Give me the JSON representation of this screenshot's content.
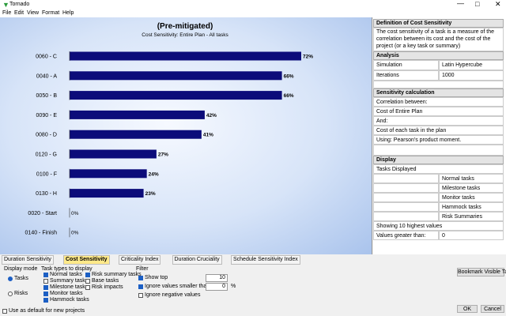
{
  "window": {
    "title": "Tornado"
  },
  "menu": [
    "File",
    "Edit",
    "View",
    "Format",
    "Help"
  ],
  "chart": {
    "type": "bar",
    "orientation": "horizontal",
    "title": "(Pre-mitigated)",
    "subtitle": "Cost Sensitivity: Entire Plan - All tasks",
    "categories": [
      "0060 - C",
      "0040 - A",
      "0050 - B",
      "0090 - E",
      "0080 - D",
      "0120 - G",
      "0100 - F",
      "0130 - H",
      "0020 - Start",
      "0140 - Finish"
    ],
    "values": [
      72,
      66,
      66,
      42,
      41,
      27,
      24,
      23,
      0,
      0
    ],
    "value_labels": [
      "72%",
      "66%",
      "66%",
      "42%",
      "41%",
      "27%",
      "24%",
      "23%",
      "0%",
      "0%"
    ],
    "color": "#0c0c7a"
  },
  "panel": {
    "definition": {
      "header": "Definition of Cost Sensitivity",
      "text": "The cost sensitivity of a task is a measure of the correlation between its cost and the cost of the project (or a key task or summary)"
    },
    "analysis": {
      "header": "Analysis",
      "rows": [
        [
          "Simulation",
          "Latin Hypercube"
        ],
        [
          "Iterations",
          "1000"
        ]
      ]
    },
    "calculation": {
      "header": "Sensitivity calculation",
      "rows": [
        "Correlation between:",
        "Cost of Entire Plan",
        "And:",
        "Cost of each task in the plan",
        "Using: Pearson's product moment."
      ]
    },
    "display": {
      "header": "Display",
      "tasks_displayed": "Tasks Displayed",
      "task_types": [
        "Normal tasks",
        "Milestone tasks",
        "Monitor tasks",
        "Hammock tasks",
        "Risk Summaries"
      ],
      "showing": "Showing 10 highest values",
      "values_greater": [
        "Values greater than:",
        "0"
      ]
    }
  },
  "tabs": [
    "Duration Sensitivity",
    "Cost Sensitivity",
    "Criticality Index",
    "Duration Cruciality",
    "Schedule Sensitivity Index"
  ],
  "options": {
    "display_mode": {
      "label": "Display mode",
      "options": [
        {
          "label": "Tasks",
          "checked": true
        },
        {
          "label": "Risks",
          "checked": false
        }
      ]
    },
    "task_types": {
      "label": "Task types to display",
      "items": [
        {
          "label": "Normal tasks",
          "checked": true
        },
        {
          "label": "Summary tasks",
          "checked": false
        },
        {
          "label": "Milestone tasks",
          "checked": true
        },
        {
          "label": "Monitor tasks",
          "checked": true
        },
        {
          "label": "Hammock tasks",
          "checked": true
        },
        {
          "label": "Risk summary tasks",
          "checked": true
        },
        {
          "label": "Base tasks",
          "checked": false
        },
        {
          "label": "Risk impacts",
          "checked": false
        }
      ]
    },
    "filter": {
      "label": "Filter",
      "show_top": {
        "label": "Show top",
        "checked": true,
        "value": 10
      },
      "ignore_smaller": {
        "label": "Ignore values smaller than +/-",
        "checked": true,
        "value": 0,
        "unit": "%"
      },
      "ignore_negative": {
        "label": "Ignore negative values",
        "checked": false
      }
    },
    "bookmark": "Bookmark Visible Tasks",
    "use_default": {
      "label": "Use as default for new projects",
      "checked": false
    },
    "ok": "OK",
    "cancel": "Cancel"
  }
}
